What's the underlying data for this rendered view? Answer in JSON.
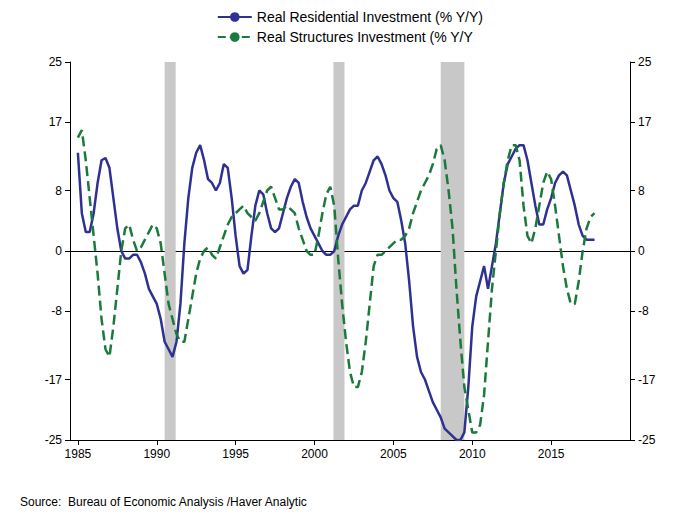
{
  "chart_data": {
    "type": "line",
    "x": [
      1985,
      1985.25,
      1985.5,
      1985.75,
      1986,
      1986.25,
      1986.5,
      1986.75,
      1987,
      1987.25,
      1987.5,
      1987.75,
      1988,
      1988.25,
      1988.5,
      1988.75,
      1989,
      1989.25,
      1989.5,
      1989.75,
      1990,
      1990.25,
      1990.5,
      1990.75,
      1991,
      1991.25,
      1991.5,
      1991.75,
      1992,
      1992.25,
      1992.5,
      1992.75,
      1993,
      1993.25,
      1993.5,
      1993.75,
      1994,
      1994.25,
      1994.5,
      1994.75,
      1995,
      1995.25,
      1995.5,
      1995.75,
      1996,
      1996.25,
      1996.5,
      1996.75,
      1997,
      1997.25,
      1997.5,
      1997.75,
      1998,
      1998.25,
      1998.5,
      1998.75,
      1999,
      1999.25,
      1999.5,
      1999.75,
      2000,
      2000.25,
      2000.5,
      2000.75,
      2001,
      2001.25,
      2001.5,
      2001.75,
      2002,
      2002.25,
      2002.5,
      2002.75,
      2003,
      2003.25,
      2003.5,
      2003.75,
      2004,
      2004.25,
      2004.5,
      2004.75,
      2005,
      2005.25,
      2005.5,
      2005.75,
      2006,
      2006.25,
      2006.5,
      2006.75,
      2007,
      2007.25,
      2007.5,
      2007.75,
      2008,
      2008.25,
      2008.5,
      2008.75,
      2009,
      2009.25,
      2009.5,
      2009.75,
      2010,
      2010.25,
      2010.5,
      2010.75,
      2011,
      2011.25,
      2011.5,
      2011.75,
      2012,
      2012.25,
      2012.5,
      2012.75,
      2013,
      2013.25,
      2013.5,
      2013.75,
      2014,
      2014.25,
      2014.5,
      2014.75,
      2015,
      2015.25,
      2015.5,
      2015.75,
      2016,
      2016.25,
      2016.5,
      2016.75,
      2017,
      2017.25,
      2017.5,
      2017.75
    ],
    "series": [
      {
        "name": "Real Residential Investment (% Y/Y)",
        "color": "#2e3192",
        "line_style": "solid",
        "marker": "none",
        "values": [
          13,
          5,
          2.5,
          2.5,
          5,
          9,
          12,
          12.3,
          11,
          7,
          3,
          0,
          -1,
          -1,
          -0.5,
          -0.5,
          -1.5,
          -3,
          -5,
          -6,
          -7,
          -9,
          -12,
          -13,
          -14,
          -12,
          -7,
          1,
          7,
          11,
          13,
          14,
          12,
          9.5,
          9,
          8,
          9,
          11.5,
          11,
          7,
          2,
          -2,
          -3,
          -2.5,
          2,
          6,
          8,
          7.5,
          5,
          3,
          2.5,
          3,
          5,
          7,
          8.5,
          9.5,
          9,
          6.5,
          4.5,
          3,
          2,
          1,
          0,
          -0.5,
          -0.5,
          0,
          2,
          3.5,
          4.5,
          5.5,
          6,
          6,
          8,
          9,
          10.5,
          12,
          12.5,
          11.5,
          10,
          8,
          7,
          6.5,
          4,
          1,
          -4,
          -10,
          -14,
          -16,
          -17,
          -18.5,
          -20,
          -21,
          -22,
          -23.5,
          -24,
          -24.5,
          -25,
          -25,
          -24,
          -18,
          -10,
          -6,
          -4,
          -2,
          -5,
          -2,
          1,
          5,
          9,
          11.5,
          12.5,
          13.5,
          14,
          14,
          12,
          9,
          6,
          3.5,
          3.5,
          5.5,
          7,
          9,
          10,
          10.5,
          10,
          8,
          6,
          3.5,
          2,
          1.5,
          1.5,
          1.5
        ]
      },
      {
        "name": "Real Structures Investment (% Y/Y",
        "color": "#1a7a3c",
        "line_style": "dashed",
        "marker": "none",
        "axis": "y2",
        "values": [
          15,
          16,
          12,
          7,
          2,
          -3,
          -9,
          -13,
          -14,
          -10,
          -5,
          0,
          3,
          3.5,
          1.5,
          0,
          0.5,
          1.5,
          2.5,
          3.5,
          3,
          1,
          -3,
          -7,
          -9,
          -11,
          -12,
          -12,
          -9,
          -6,
          -3,
          -1,
          0,
          0.5,
          -0.5,
          -1,
          0.5,
          2,
          3.5,
          4.5,
          5,
          5.5,
          6,
          5,
          4.5,
          4,
          5,
          6.5,
          8,
          8.5,
          7,
          5.5,
          5.5,
          6,
          5.5,
          5,
          3,
          1.5,
          0,
          -0.5,
          -0.5,
          2,
          5,
          7.5,
          8.5,
          6,
          -1,
          -7,
          -12,
          -16,
          -18,
          -18,
          -16,
          -12,
          -7,
          -2,
          -0.5,
          -0.5,
          0,
          0.5,
          1,
          1.5,
          1.5,
          2,
          3,
          5,
          6.5,
          8,
          9,
          10,
          11.5,
          13.5,
          14,
          12,
          8,
          3,
          -5,
          -12,
          -18,
          -21,
          -24,
          -24,
          -23,
          -19,
          -12,
          -5,
          0,
          5,
          9,
          12,
          14,
          14,
          12,
          6,
          2,
          1,
          3,
          6,
          9,
          10.5,
          9.5,
          6,
          2,
          -2,
          -5,
          -7,
          -7,
          -4,
          0,
          3,
          4.5,
          5
        ]
      }
    ],
    "xlim": [
      1984.5,
      2020
    ],
    "xticks": [
      1985,
      1990,
      1995,
      2000,
      2005,
      2010,
      2015
    ],
    "ylim": [
      -25,
      25
    ],
    "yticks": [
      -25,
      -17,
      -8,
      0,
      8,
      17,
      25
    ],
    "y2lim": [
      -25,
      25
    ],
    "y2ticks": [
      -25,
      -17,
      -8,
      0,
      8,
      17,
      25
    ],
    "shaded_periods": [
      [
        1990.5,
        1991.2
      ],
      [
        2001.2,
        2001.9
      ],
      [
        2008.0,
        2009.5
      ]
    ],
    "grid": false,
    "legend": "top",
    "source": "Source:  Bureau of Economic Analysis /Haver Analytic"
  }
}
